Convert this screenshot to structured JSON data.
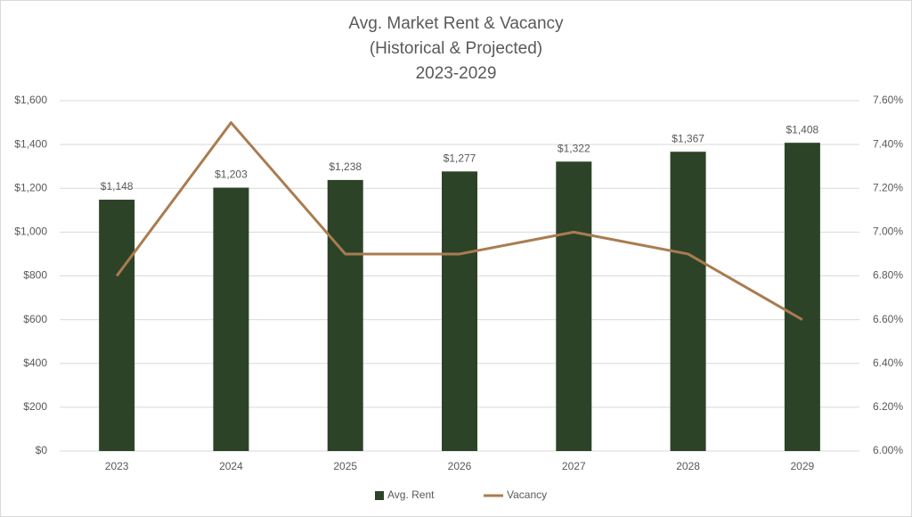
{
  "chart_data": {
    "type": "bar",
    "title": [
      "Avg. Market Rent & Vacancy",
      "(Historical & Projected)",
      "2023-2029"
    ],
    "categories": [
      "2023",
      "2024",
      "2025",
      "2026",
      "2027",
      "2028",
      "2029"
    ],
    "series": [
      {
        "name": "Avg. Rent",
        "type": "bar",
        "color": "#2d4328",
        "values": [
          1148,
          1203,
          1238,
          1277,
          1322,
          1367,
          1408
        ],
        "value_labels": [
          "$1,148",
          "$1,203",
          "$1,238",
          "$1,277",
          "$1,322",
          "$1,367",
          "$1,408"
        ]
      },
      {
        "name": "Vacancy",
        "type": "line",
        "axis": "y2",
        "color": "#a97c50",
        "values": [
          6.8,
          7.5,
          6.9,
          6.9,
          7.0,
          6.9,
          6.6
        ]
      }
    ],
    "ylim": [
      0,
      1600
    ],
    "yticks": [
      {
        "value": 0,
        "label": "$0"
      },
      {
        "value": 200,
        "label": "$200"
      },
      {
        "value": 400,
        "label": "$400"
      },
      {
        "value": 600,
        "label": "$600"
      },
      {
        "value": 800,
        "label": "$800"
      },
      {
        "value": 1000,
        "label": "$1,000"
      },
      {
        "value": 1200,
        "label": "$1,200"
      },
      {
        "value": 1400,
        "label": "$1,400"
      },
      {
        "value": 1600,
        "label": "$1,600"
      }
    ],
    "y2lim": [
      6.0,
      7.6
    ],
    "y2ticks": [
      {
        "value": 6.0,
        "label": "6.00%"
      },
      {
        "value": 6.2,
        "label": "6.20%"
      },
      {
        "value": 6.4,
        "label": "6.40%"
      },
      {
        "value": 6.6,
        "label": "6.60%"
      },
      {
        "value": 6.8,
        "label": "6.80%"
      },
      {
        "value": 7.0,
        "label": "7.00%"
      },
      {
        "value": 7.2,
        "label": "7.20%"
      },
      {
        "value": 7.4,
        "label": "7.40%"
      },
      {
        "value": 7.6,
        "label": "7.60%"
      }
    ],
    "grid": true,
    "legend": "bottom"
  }
}
